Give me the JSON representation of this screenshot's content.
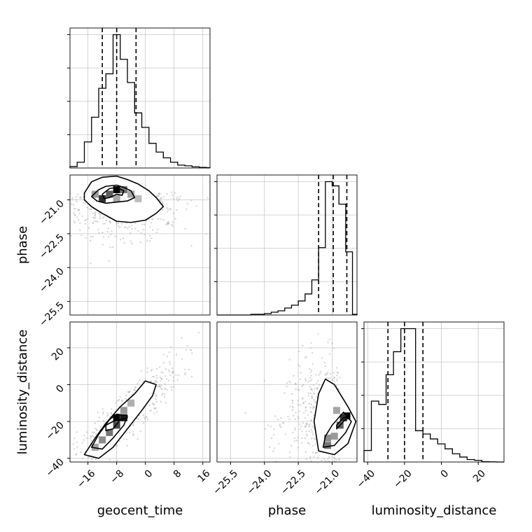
{
  "chart_data": {
    "type": "corner",
    "parameters": [
      "geocent_time",
      "phase",
      "luminosity_distance"
    ],
    "grid": true,
    "ranges": {
      "geocent_time": [
        -21,
        18
      ],
      "phase": [
        -26.1,
        -19.9
      ],
      "luminosity_distance": [
        -42,
        34
      ]
    },
    "ticks": {
      "geocent_time": [
        "−16",
        "−8",
        "0",
        "8",
        "16"
      ],
      "phase": [
        "−25.5",
        "−24.0",
        "−22.5",
        "−21.0"
      ],
      "luminosity_distance": [
        "−40",
        "−20",
        "0",
        "20"
      ]
    },
    "diagonal": [
      {
        "parameter": "geocent_time",
        "bin_edges": [
          -21,
          -19,
          -17,
          -15,
          -13,
          -11,
          -9,
          -7,
          -5,
          -3,
          -1,
          1,
          3,
          5,
          7,
          9,
          11,
          13,
          15,
          17,
          18
        ],
        "counts": [
          1,
          4,
          18,
          35,
          55,
          65,
          92,
          75,
          59,
          38,
          28,
          17,
          11,
          7,
          4,
          2,
          1.5,
          0.8,
          0.4,
          0.2
        ],
        "quantiles": [
          -12,
          -8,
          -2.6
        ]
      },
      {
        "parameter": "phase",
        "bin_edges": [
          -26.1,
          -25.8,
          -25.5,
          -25.2,
          -24.9,
          -24.6,
          -24.3,
          -24.0,
          -23.7,
          -23.4,
          -23.1,
          -22.8,
          -22.5,
          -22.2,
          -21.9,
          -21.6,
          -21.3,
          -21.0,
          -20.7,
          -20.4,
          -20.1,
          -19.9
        ],
        "counts": [
          0,
          0,
          0,
          0,
          0,
          0.5,
          0.5,
          1,
          2,
          3,
          5,
          7,
          10,
          15,
          25,
          48,
          95,
          92,
          79,
          45,
          0.5
        ],
        "quantiles": [
          -21.6,
          -20.95,
          -20.35
        ]
      },
      {
        "parameter": "luminosity_distance",
        "bin_edges": [
          -42,
          -38,
          -34,
          -30,
          -26,
          -22,
          -18,
          -14,
          -10,
          -6,
          -2,
          2,
          6,
          10,
          14,
          18,
          22,
          26,
          30,
          34
        ],
        "counts": [
          7,
          37,
          35,
          53,
          67,
          81,
          81,
          19,
          17,
          14,
          11,
          8,
          5,
          3,
          1.5,
          1,
          0.2,
          0.1,
          0
        ],
        "quantiles": [
          -29,
          -20,
          -10
        ]
      }
    ],
    "pairs": [
      {
        "x": "geocent_time",
        "y": "phase",
        "levels": [
          [
            [
              -17,
              -20.7
            ],
            [
              -15,
              -20.2
            ],
            [
              -12,
              -20.0
            ],
            [
              -8,
              -19.95
            ],
            [
              -5,
              -20.1
            ],
            [
              -2,
              -20.3
            ],
            [
              1,
              -20.6
            ],
            [
              3,
              -20.9
            ],
            [
              5,
              -21.3
            ],
            [
              3,
              -21.6
            ],
            [
              0,
              -21.9
            ],
            [
              -4,
              -22.0
            ],
            [
              -8,
              -21.95
            ],
            [
              -12,
              -21.6
            ],
            [
              -15,
              -21.3
            ],
            [
              -17,
              -21.0
            ]
          ],
          [
            [
              -15,
              -20.85
            ],
            [
              -13,
              -20.55
            ],
            [
              -11,
              -20.4
            ],
            [
              -8,
              -20.35
            ],
            [
              -6,
              -20.45
            ],
            [
              -4,
              -20.6
            ],
            [
              -3,
              -20.9
            ],
            [
              -5,
              -21.05
            ],
            [
              -8,
              -21.1
            ],
            [
              -11,
              -21.15
            ],
            [
              -13.5,
              -21.05
            ]
          ],
          [
            [
              -12,
              -20.75
            ],
            [
              -10,
              -20.5
            ],
            [
              -8,
              -20.45
            ],
            [
              -6,
              -20.6
            ],
            [
              -6.5,
              -20.8
            ],
            [
              -8,
              -20.75
            ],
            [
              -10,
              -20.9
            ],
            [
              -11.5,
              -20.95
            ]
          ]
        ],
        "density_cells": [
          [
            -8,
            -20.55,
            1.0
          ],
          [
            -12,
            -20.95,
            0.8
          ],
          [
            -10,
            -20.75,
            0.6
          ],
          [
            -6,
            -20.55,
            0.5
          ],
          [
            -14,
            -20.75,
            0.35
          ],
          [
            -4,
            -20.75,
            0.3
          ],
          [
            -8,
            -20.95,
            0.3
          ],
          [
            -2,
            -20.95,
            0.2
          ]
        ]
      },
      {
        "x": "geocent_time",
        "y": "luminosity_distance",
        "levels": [
          [
            [
              -17,
              -38
            ],
            [
              -13,
              -40
            ],
            [
              -9,
              -34
            ],
            [
              -5,
              -24
            ],
            [
              -1,
              -14
            ],
            [
              2,
              -6
            ],
            [
              3,
              0
            ],
            [
              0,
              2
            ],
            [
              -3,
              -5
            ],
            [
              -7,
              -12
            ],
            [
              -11,
              -21
            ],
            [
              -14,
              -29
            ]
          ],
          [
            [
              -15,
              -34
            ],
            [
              -12,
              -35
            ],
            [
              -9,
              -29
            ],
            [
              -6,
              -22
            ],
            [
              -5,
              -17
            ],
            [
              -8,
              -16
            ],
            [
              -10,
              -19
            ],
            [
              -13,
              -27
            ]
          ],
          [
            [
              -11,
              -25
            ],
            [
              -9,
              -24
            ],
            [
              -7,
              -19
            ],
            [
              -5,
              -18
            ],
            [
              -9,
              -20
            ],
            [
              -11,
              -22
            ]
          ]
        ],
        "density_cells": [
          [
            -8,
            -18,
            1.0
          ],
          [
            -6,
            -18,
            0.9
          ],
          [
            -8,
            -22,
            0.7
          ],
          [
            -10,
            -26,
            0.5
          ],
          [
            -12,
            -30,
            0.4
          ],
          [
            -6,
            -14,
            0.35
          ],
          [
            -14,
            -34,
            0.3
          ],
          [
            -4,
            -10,
            0.25
          ]
        ]
      },
      {
        "x": "phase",
        "y": "luminosity_distance",
        "levels": [
          [
            [
              -21.6,
              -36
            ],
            [
              -20.9,
              -38
            ],
            [
              -20.3,
              -32
            ],
            [
              -19.95,
              -20
            ],
            [
              -20.3,
              -12
            ],
            [
              -20.9,
              0
            ],
            [
              -21.3,
              3
            ],
            [
              -21.6,
              -5
            ],
            [
              -21.8,
              -20
            ]
          ],
          [
            [
              -21.4,
              -34
            ],
            [
              -20.9,
              -33
            ],
            [
              -20.4,
              -26
            ],
            [
              -20.15,
              -20
            ],
            [
              -20.5,
              -15
            ],
            [
              -21.0,
              -22
            ],
            [
              -21.3,
              -28
            ]
          ],
          [
            [
              -20.8,
              -22
            ],
            [
              -20.5,
              -18
            ],
            [
              -20.25,
              -17
            ],
            [
              -20.5,
              -20
            ],
            [
              -20.8,
              -24
            ]
          ]
        ],
        "density_cells": [
          [
            -20.35,
            -17,
            1.0
          ],
          [
            -20.5,
            -18,
            0.8
          ],
          [
            -20.65,
            -22,
            0.6
          ],
          [
            -21.2,
            -33,
            0.5
          ],
          [
            -21.2,
            -29,
            0.4
          ],
          [
            -20.9,
            -28,
            0.35
          ],
          [
            -20.8,
            -14,
            0.3
          ]
        ]
      }
    ]
  }
}
